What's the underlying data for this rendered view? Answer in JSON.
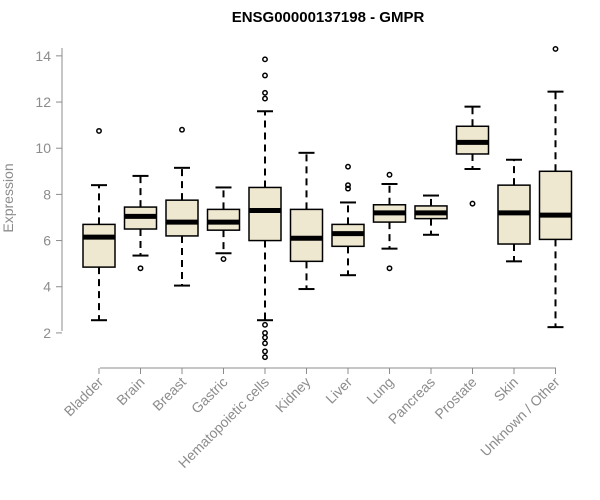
{
  "chart_data": {
    "type": "boxplot",
    "title": "ENSG00000137198 - GMPR",
    "xlabel": "",
    "ylabel": "Expression",
    "ylim": [
      1.0,
      14.6
    ],
    "yticks": [
      2,
      4,
      6,
      8,
      10,
      12,
      14
    ],
    "box_fill": "#efe8d0",
    "box_stroke": "#000000",
    "categories": [
      "Bladder",
      "Brain",
      "Breast",
      "Gastric",
      "Hematopoietic cells",
      "Kidney",
      "Liver",
      "Lung",
      "Pancreas",
      "Prostate",
      "Skin",
      "Unknown / Other"
    ],
    "boxes": [
      {
        "q1": 4.85,
        "median": 6.15,
        "q3": 6.7,
        "whisker_low": 2.55,
        "whisker_high": 8.4,
        "outliers": [
          10.75
        ]
      },
      {
        "q1": 6.5,
        "median": 7.05,
        "q3": 7.45,
        "whisker_low": 5.35,
        "whisker_high": 8.8,
        "outliers": [
          4.8
        ]
      },
      {
        "q1": 6.2,
        "median": 6.8,
        "q3": 7.75,
        "whisker_low": 4.05,
        "whisker_high": 9.15,
        "outliers": [
          10.8
        ]
      },
      {
        "q1": 6.45,
        "median": 6.8,
        "q3": 7.35,
        "whisker_low": 5.45,
        "whisker_high": 8.3,
        "outliers": [
          5.2
        ]
      },
      {
        "q1": 6.0,
        "median": 7.3,
        "q3": 8.3,
        "whisker_low": 2.55,
        "whisker_high": 11.6,
        "outliers": [
          13.85,
          13.15,
          12.4,
          12.15,
          2.35,
          2.0,
          1.8,
          1.55,
          1.2,
          0.95
        ]
      },
      {
        "q1": 5.1,
        "median": 6.1,
        "q3": 7.35,
        "whisker_low": 3.9,
        "whisker_high": 9.8,
        "outliers": []
      },
      {
        "q1": 5.75,
        "median": 6.3,
        "q3": 6.7,
        "whisker_low": 4.5,
        "whisker_high": 7.65,
        "outliers": [
          9.2,
          8.4,
          8.25
        ]
      },
      {
        "q1": 6.8,
        "median": 7.2,
        "q3": 7.55,
        "whisker_low": 5.65,
        "whisker_high": 8.45,
        "outliers": [
          8.85,
          4.8
        ]
      },
      {
        "q1": 6.95,
        "median": 7.2,
        "q3": 7.5,
        "whisker_low": 6.25,
        "whisker_high": 7.95,
        "outliers": []
      },
      {
        "q1": 9.75,
        "median": 10.25,
        "q3": 10.95,
        "whisker_low": 9.1,
        "whisker_high": 11.8,
        "outliers": [
          7.6
        ]
      },
      {
        "q1": 5.85,
        "median": 7.2,
        "q3": 8.4,
        "whisker_low": 5.1,
        "whisker_high": 9.5,
        "outliers": []
      },
      {
        "q1": 6.05,
        "median": 7.1,
        "q3": 9.0,
        "whisker_low": 2.25,
        "whisker_high": 12.45,
        "outliers": [
          14.3
        ]
      }
    ]
  }
}
